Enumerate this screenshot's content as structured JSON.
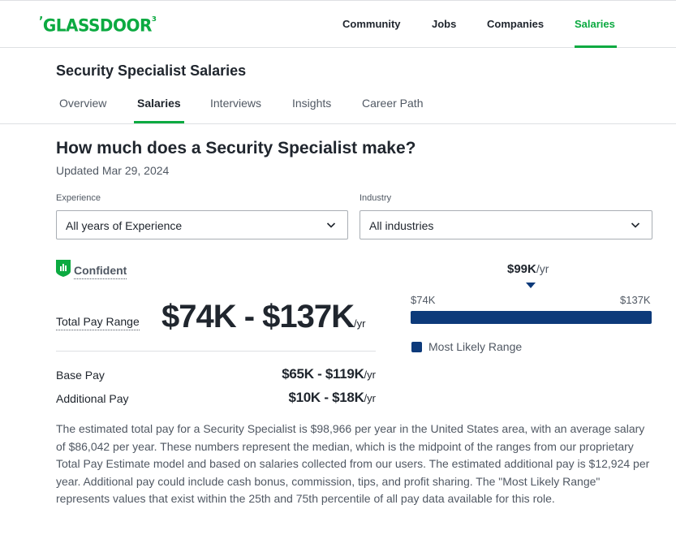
{
  "header": {
    "logo": "GLASSDOOR",
    "nav": [
      "Community",
      "Jobs",
      "Companies",
      "Salaries"
    ],
    "active_nav": "Salaries",
    "accent_color": "#0caa41"
  },
  "subheader": {
    "title": "Security Specialist Salaries",
    "tabs": [
      "Overview",
      "Salaries",
      "Interviews",
      "Insights",
      "Career Path"
    ],
    "active_tab": "Salaries"
  },
  "main": {
    "question": "How much does a Security Specialist make?",
    "updated": "Updated Mar 29, 2024",
    "filters": {
      "experience": {
        "label": "Experience",
        "value": "All years of Experience"
      },
      "industry": {
        "label": "Industry",
        "value": "All industries"
      }
    },
    "confidence": "Confident",
    "total_pay": {
      "label": "Total Pay Range",
      "value": "$74K - $137K",
      "unit": "/yr"
    },
    "base_pay": {
      "label": "Base Pay",
      "value": "$65K - $119K",
      "unit": "/yr"
    },
    "additional_pay": {
      "label": "Additional Pay",
      "value": "$10K - $18K",
      "unit": "/yr"
    },
    "range_chart": {
      "median": "$99K",
      "median_unit": "/yr",
      "low": "$74K",
      "high": "$137K",
      "legend": "Most Likely Range",
      "bar_color": "#0d3a7a"
    },
    "description": "The estimated total pay for a Security Specialist is $98,966 per year in the United States area, with an average salary of $86,042 per year. These numbers represent the median, which is the midpoint of the ranges from our proprietary Total Pay Estimate model and based on salaries collected from our users. The estimated additional pay is $12,924 per year. Additional pay could include cash bonus, commission, tips, and profit sharing. The \"Most Likely Range\" represents values that exist within the 25th and 75th percentile of all pay data available for this role."
  }
}
